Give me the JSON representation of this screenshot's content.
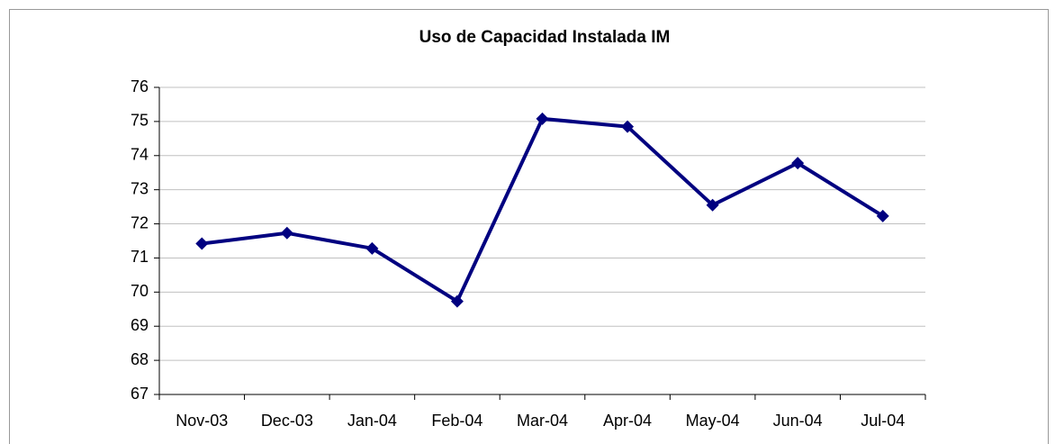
{
  "chart_data": {
    "type": "line",
    "title": "Uso de Capacidad Instalada IM",
    "categories": [
      "Nov-03",
      "Dec-03",
      "Jan-04",
      "Feb-04",
      "Mar-04",
      "Apr-04",
      "May-04",
      "Jun-04",
      "Jul-04"
    ],
    "values": [
      71.42,
      71.73,
      71.28,
      69.73,
      75.08,
      74.85,
      72.55,
      73.78,
      72.23
    ],
    "color": "#000080",
    "ylim": [
      67,
      76
    ],
    "yticks": [
      67,
      68,
      69,
      70,
      71,
      72,
      73,
      74,
      75,
      76
    ],
    "grid": true
  }
}
